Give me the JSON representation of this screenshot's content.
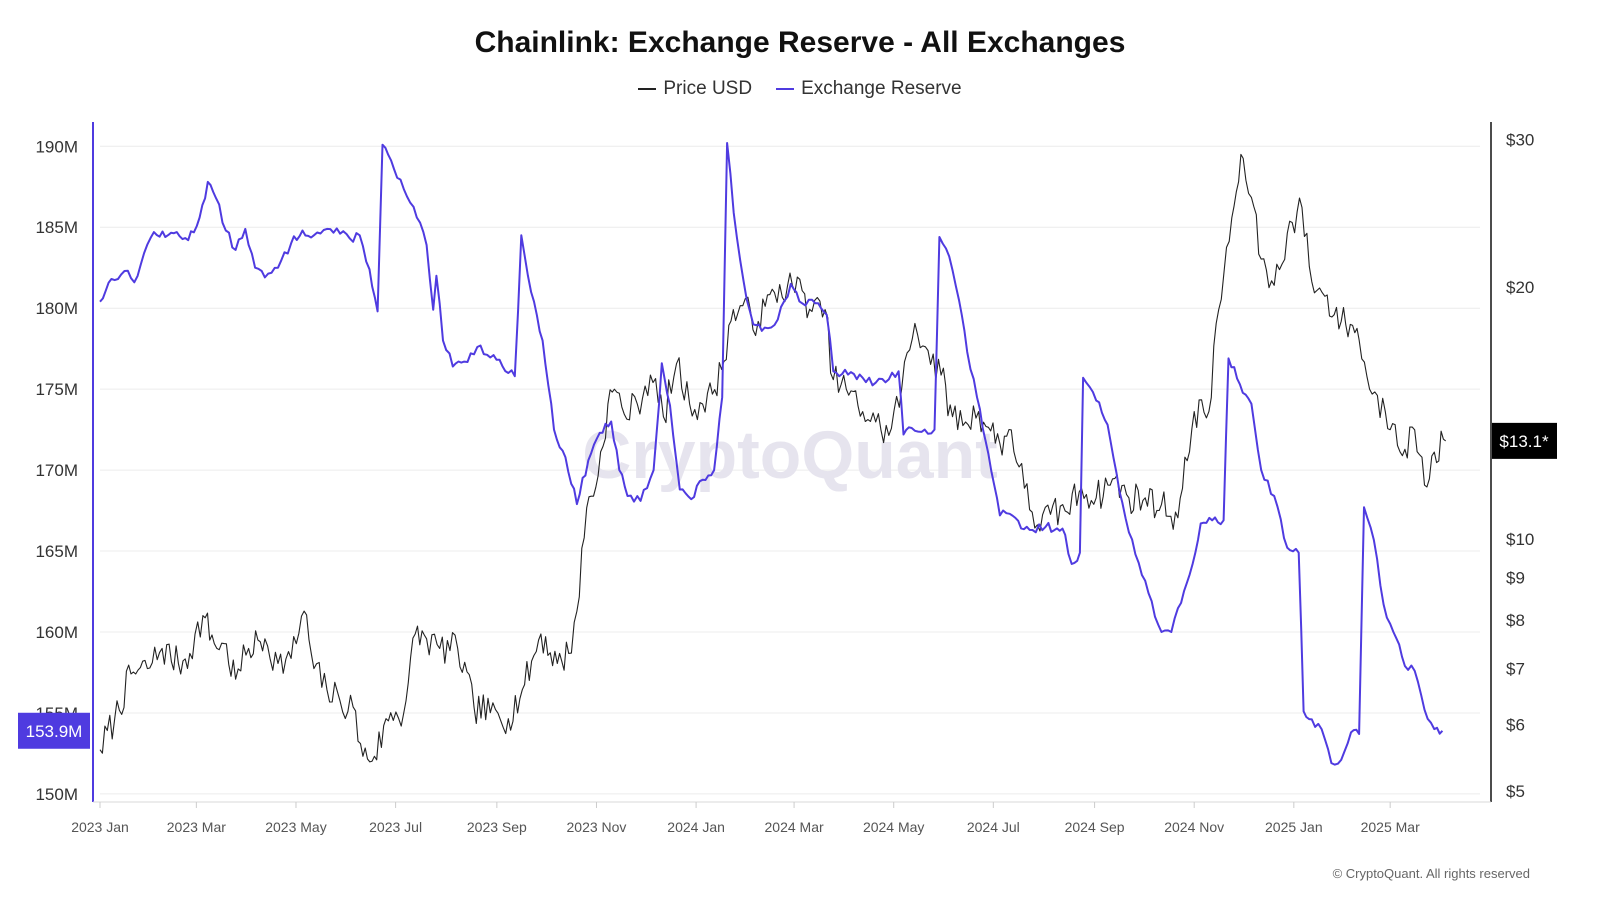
{
  "title": "Chainlink: Exchange Reserve - All Exchanges",
  "legend": {
    "price_label": "Price USD",
    "reserve_label": "Exchange Reserve"
  },
  "colors": {
    "price": "#222222",
    "reserve": "#4f3be0",
    "grid": "#ececec",
    "reserve_axis": "#4f3be0",
    "price_axis": "#111111"
  },
  "watermark": "CryptoQuant",
  "copyright": "© CryptoQuant. All rights reserved",
  "chart_data": {
    "type": "line",
    "title": "Chainlink: Exchange Reserve - All Exchanges",
    "x_ticks": [
      "2023 Jan",
      "2023 Mar",
      "2023 May",
      "2023 Jul",
      "2023 Sep",
      "2023 Nov",
      "2024 Jan",
      "2024 Mar",
      "2024 May",
      "2024 Jul",
      "2024 Sep",
      "2024 Nov",
      "2025 Jan",
      "2025 Mar"
    ],
    "x_range": [
      "2023-01-01",
      "2025-04-25"
    ],
    "left_axis": {
      "label": "Exchange Reserve",
      "ticks": [
        150,
        155,
        160,
        165,
        170,
        175,
        180,
        185,
        190
      ],
      "tick_labels": [
        "150M",
        "155M",
        "160M",
        "165M",
        "170M",
        "175M",
        "180M",
        "185M",
        "190M"
      ],
      "ylim": [
        149.5,
        191.5
      ],
      "current_label": "153.9M",
      "current_value": 153.9
    },
    "right_axis": {
      "label": "Price USD",
      "scale": "log",
      "ticks": [
        5,
        6,
        7,
        8,
        9,
        10,
        20,
        30
      ],
      "tick_labels": [
        "$5",
        "$6",
        "$7",
        "$8",
        "$9",
        "$10",
        "$20",
        "$30"
      ],
      "ylim": [
        4.85,
        31.5
      ],
      "current_label": "$13.1*",
      "current_value": 13.1
    },
    "series": [
      {
        "name": "Exchange Reserve",
        "axis": "left",
        "unit": "M tokens",
        "points": [
          [
            "2023-01-01",
            180.4
          ],
          [
            "2023-01-08",
            181.8
          ],
          [
            "2023-01-16",
            182.3
          ],
          [
            "2023-01-22",
            181.6
          ],
          [
            "2023-01-28",
            183.4
          ],
          [
            "2023-02-03",
            184.7
          ],
          [
            "2023-02-10",
            184.4
          ],
          [
            "2023-02-17",
            184.7
          ],
          [
            "2023-02-24",
            184.2
          ],
          [
            "2023-03-03",
            185.6
          ],
          [
            "2023-03-08",
            187.8
          ],
          [
            "2023-03-13",
            186.8
          ],
          [
            "2023-03-19",
            184.8
          ],
          [
            "2023-03-25",
            183.6
          ],
          [
            "2023-03-31",
            184.9
          ],
          [
            "2023-04-06",
            182.5
          ],
          [
            "2023-04-12",
            181.9
          ],
          [
            "2023-04-20",
            182.5
          ],
          [
            "2023-04-28",
            184.0
          ],
          [
            "2023-05-05",
            184.8
          ],
          [
            "2023-05-12",
            184.5
          ],
          [
            "2023-05-20",
            184.9
          ],
          [
            "2023-05-28",
            184.6
          ],
          [
            "2023-06-03",
            184.3
          ],
          [
            "2023-06-09",
            184.5
          ],
          [
            "2023-06-15",
            182.4
          ],
          [
            "2023-06-20",
            179.8
          ],
          [
            "2023-06-23",
            190.1
          ],
          [
            "2023-06-30",
            188.6
          ],
          [
            "2023-07-08",
            186.9
          ],
          [
            "2023-07-14",
            185.6
          ],
          [
            "2023-07-20",
            183.9
          ],
          [
            "2023-07-24",
            179.9
          ],
          [
            "2023-07-26",
            182.0
          ],
          [
            "2023-07-30",
            178.0
          ],
          [
            "2023-08-05",
            176.4
          ],
          [
            "2023-08-12",
            176.7
          ],
          [
            "2023-08-20",
            177.6
          ],
          [
            "2023-08-30",
            177.1
          ],
          [
            "2023-09-08",
            176.0
          ],
          [
            "2023-09-12",
            175.8
          ],
          [
            "2023-09-16",
            184.5
          ],
          [
            "2023-09-22",
            181.0
          ],
          [
            "2023-09-29",
            178.0
          ],
          [
            "2023-10-06",
            172.5
          ],
          [
            "2023-10-13",
            170.8
          ],
          [
            "2023-10-20",
            167.9
          ],
          [
            "2023-10-27",
            170.6
          ],
          [
            "2023-11-03",
            172.3
          ],
          [
            "2023-11-10",
            173.0
          ],
          [
            "2023-11-15",
            170.0
          ],
          [
            "2023-11-20",
            168.4
          ],
          [
            "2023-11-28",
            168.1
          ],
          [
            "2023-12-06",
            170.0
          ],
          [
            "2023-12-11",
            176.6
          ],
          [
            "2023-12-16",
            174.0
          ],
          [
            "2023-12-22",
            168.8
          ],
          [
            "2023-12-29",
            168.2
          ],
          [
            "2024-01-05",
            169.4
          ],
          [
            "2024-01-12",
            170.0
          ],
          [
            "2024-01-17",
            174.5
          ],
          [
            "2024-01-20",
            190.2
          ],
          [
            "2024-01-24",
            185.9
          ],
          [
            "2024-01-30",
            181.7
          ],
          [
            "2024-02-05",
            179.0
          ],
          [
            "2024-02-12",
            178.8
          ],
          [
            "2024-02-20",
            179.3
          ],
          [
            "2024-02-28",
            181.5
          ],
          [
            "2024-03-06",
            180.3
          ],
          [
            "2024-03-14",
            180.3
          ],
          [
            "2024-03-21",
            179.6
          ],
          [
            "2024-03-25",
            176.1
          ],
          [
            "2024-04-03",
            175.9
          ],
          [
            "2024-04-12",
            175.7
          ],
          [
            "2024-04-20",
            175.4
          ],
          [
            "2024-04-28",
            175.6
          ],
          [
            "2024-05-04",
            176.1
          ],
          [
            "2024-05-07",
            172.2
          ],
          [
            "2024-05-12",
            172.6
          ],
          [
            "2024-05-20",
            172.5
          ],
          [
            "2024-05-26",
            172.5
          ],
          [
            "2024-05-29",
            184.4
          ],
          [
            "2024-06-04",
            183.2
          ],
          [
            "2024-06-10",
            180.5
          ],
          [
            "2024-06-15",
            177.3
          ],
          [
            "2024-06-21",
            174.5
          ],
          [
            "2024-06-28",
            171.0
          ],
          [
            "2024-07-05",
            167.2
          ],
          [
            "2024-07-11",
            167.3
          ],
          [
            "2024-07-18",
            166.4
          ],
          [
            "2024-07-25",
            166.3
          ],
          [
            "2024-08-02",
            166.5
          ],
          [
            "2024-08-09",
            166.4
          ],
          [
            "2024-08-14",
            166.0
          ],
          [
            "2024-08-18",
            164.2
          ],
          [
            "2024-08-23",
            164.9
          ],
          [
            "2024-08-25",
            175.7
          ],
          [
            "2024-09-02",
            174.3
          ],
          [
            "2024-09-09",
            172.8
          ],
          [
            "2024-09-18",
            168.0
          ],
          [
            "2024-09-26",
            164.8
          ],
          [
            "2024-10-04",
            162.4
          ],
          [
            "2024-10-12",
            160.0
          ],
          [
            "2024-10-18",
            160.0
          ],
          [
            "2024-10-24",
            161.8
          ],
          [
            "2024-10-31",
            164.2
          ],
          [
            "2024-11-05",
            166.7
          ],
          [
            "2024-11-12",
            166.9
          ],
          [
            "2024-11-19",
            166.9
          ],
          [
            "2024-11-22",
            176.9
          ],
          [
            "2024-11-29",
            175.3
          ],
          [
            "2024-12-06",
            174.1
          ],
          [
            "2024-12-12",
            170.0
          ],
          [
            "2024-12-20",
            168.4
          ],
          [
            "2024-12-28",
            165.2
          ],
          [
            "2025-01-04",
            164.9
          ],
          [
            "2025-01-07",
            155.1
          ],
          [
            "2025-01-12",
            154.6
          ],
          [
            "2025-01-18",
            154.0
          ],
          [
            "2025-01-24",
            151.9
          ],
          [
            "2025-01-30",
            152.1
          ],
          [
            "2025-02-05",
            153.8
          ],
          [
            "2025-02-10",
            153.7
          ],
          [
            "2025-02-13",
            167.7
          ],
          [
            "2025-02-19",
            165.7
          ],
          [
            "2025-02-25",
            161.7
          ],
          [
            "2025-03-03",
            160.0
          ],
          [
            "2025-03-10",
            157.9
          ],
          [
            "2025-03-16",
            157.6
          ],
          [
            "2025-03-22",
            155.2
          ],
          [
            "2025-03-28",
            154.0
          ],
          [
            "2025-04-02",
            153.9
          ]
        ]
      },
      {
        "name": "Price USD",
        "axis": "right",
        "unit": "USD",
        "points": [
          [
            "2023-01-01",
            5.6
          ],
          [
            "2023-01-10",
            6.1
          ],
          [
            "2023-01-20",
            6.9
          ],
          [
            "2023-01-30",
            7.0
          ],
          [
            "2023-02-08",
            7.4
          ],
          [
            "2023-02-18",
            7.1
          ],
          [
            "2023-02-25",
            7.3
          ],
          [
            "2023-03-05",
            8.1
          ],
          [
            "2023-03-12",
            7.5
          ],
          [
            "2023-03-18",
            7.5
          ],
          [
            "2023-03-25",
            6.8
          ],
          [
            "2023-04-02",
            7.4
          ],
          [
            "2023-04-12",
            7.6
          ],
          [
            "2023-04-20",
            7.1
          ],
          [
            "2023-04-28",
            7.2
          ],
          [
            "2023-05-06",
            8.2
          ],
          [
            "2023-05-12",
            7.0
          ],
          [
            "2023-05-20",
            6.6
          ],
          [
            "2023-05-28",
            6.4
          ],
          [
            "2023-06-05",
            6.3
          ],
          [
            "2023-06-11",
            5.5
          ],
          [
            "2023-06-18",
            5.5
          ],
          [
            "2023-06-28",
            6.2
          ],
          [
            "2023-07-06",
            6.2
          ],
          [
            "2023-07-13",
            7.7
          ],
          [
            "2023-07-20",
            7.6
          ],
          [
            "2023-07-28",
            7.4
          ],
          [
            "2023-08-08",
            7.4
          ],
          [
            "2023-08-18",
            6.3
          ],
          [
            "2023-08-28",
            6.2
          ],
          [
            "2023-09-08",
            6.1
          ],
          [
            "2023-09-18",
            6.7
          ],
          [
            "2023-09-28",
            7.7
          ],
          [
            "2023-10-08",
            7.1
          ],
          [
            "2023-10-15",
            7.3
          ],
          [
            "2023-10-20",
            8.2
          ],
          [
            "2023-10-26",
            10.9
          ],
          [
            "2023-11-02",
            11.9
          ],
          [
            "2023-11-08",
            14.5
          ],
          [
            "2023-11-12",
            15.1
          ],
          [
            "2023-11-18",
            14.1
          ],
          [
            "2023-11-26",
            14.5
          ],
          [
            "2023-12-04",
            15.7
          ],
          [
            "2023-12-12",
            14.0
          ],
          [
            "2023-12-20",
            16.2
          ],
          [
            "2023-12-28",
            14.5
          ],
          [
            "2024-01-05",
            14.5
          ],
          [
            "2024-01-11",
            14.9
          ],
          [
            "2024-01-18",
            16.3
          ],
          [
            "2024-01-21",
            18.0
          ],
          [
            "2024-01-28",
            19.0
          ],
          [
            "2024-02-08",
            18.2
          ],
          [
            "2024-02-18",
            19.7
          ],
          [
            "2024-02-26",
            20.1
          ],
          [
            "2024-03-06",
            19.8
          ],
          [
            "2024-03-12",
            18.7
          ],
          [
            "2024-03-20",
            18.8
          ],
          [
            "2024-03-25",
            15.5
          ],
          [
            "2024-04-02",
            15.1
          ],
          [
            "2024-04-12",
            14.2
          ],
          [
            "2024-04-20",
            13.8
          ],
          [
            "2024-04-28",
            13.3
          ],
          [
            "2024-05-06",
            15.2
          ],
          [
            "2024-05-14",
            18.1
          ],
          [
            "2024-05-22",
            16.8
          ],
          [
            "2024-05-30",
            15.7
          ],
          [
            "2024-06-06",
            14.0
          ],
          [
            "2024-06-14",
            13.8
          ],
          [
            "2024-06-22",
            14.2
          ],
          [
            "2024-06-28",
            13.6
          ],
          [
            "2024-07-05",
            13.0
          ],
          [
            "2024-07-12",
            13.5
          ],
          [
            "2024-07-20",
            11.5
          ],
          [
            "2024-07-28",
            10.4
          ],
          [
            "2024-08-05",
            10.7
          ],
          [
            "2024-08-14",
            10.8
          ],
          [
            "2024-08-24",
            11.5
          ],
          [
            "2024-09-02",
            11.2
          ],
          [
            "2024-09-12",
            11.8
          ],
          [
            "2024-09-22",
            11.2
          ],
          [
            "2024-10-02",
            11.2
          ],
          [
            "2024-10-12",
            11.0
          ],
          [
            "2024-10-22",
            10.6
          ],
          [
            "2024-11-01",
            14.2
          ],
          [
            "2024-11-10",
            14.2
          ],
          [
            "2024-11-16",
            18.8
          ],
          [
            "2024-11-24",
            24.2
          ],
          [
            "2024-12-01",
            28.5
          ],
          [
            "2024-12-06",
            25.6
          ],
          [
            "2024-12-12",
            21.6
          ],
          [
            "2024-12-20",
            20.1
          ],
          [
            "2024-12-28",
            23.2
          ],
          [
            "2025-01-06",
            24.9
          ],
          [
            "2025-01-12",
            20.3
          ],
          [
            "2025-01-20",
            19.5
          ],
          [
            "2025-01-30",
            18.2
          ],
          [
            "2025-02-06",
            18.0
          ],
          [
            "2025-02-10",
            17.3
          ],
          [
            "2025-02-18",
            14.9
          ],
          [
            "2025-02-26",
            14.2
          ],
          [
            "2025-03-04",
            13.7
          ],
          [
            "2025-03-10",
            12.8
          ],
          [
            "2025-03-16",
            13.5
          ],
          [
            "2025-03-22",
            11.6
          ],
          [
            "2025-03-28",
            12.7
          ],
          [
            "2025-04-04",
            13.1
          ]
        ]
      }
    ]
  }
}
